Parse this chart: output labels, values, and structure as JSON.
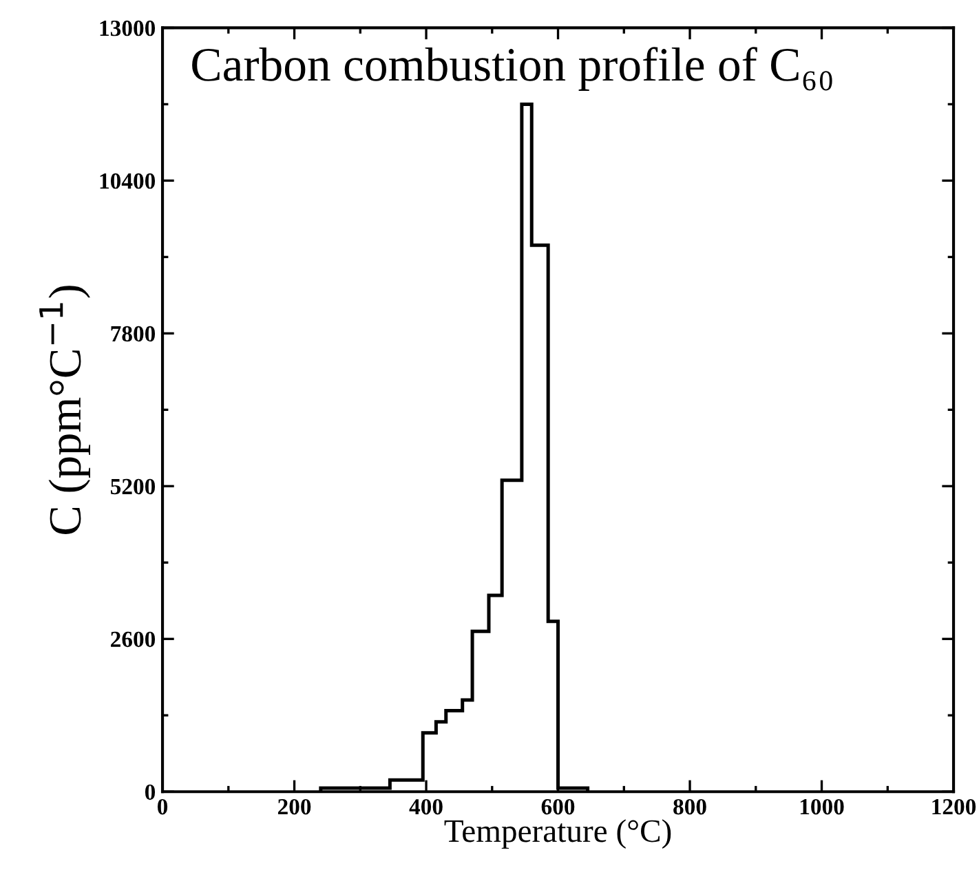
{
  "chart_data": {
    "type": "histogram",
    "title": "Carbon combustion profile of C₆₀",
    "xlabel": "Temperature (°C)",
    "ylabel": "C (ppm°C$^{−1}$)",
    "bins": [
      240,
      345,
      395,
      415,
      430,
      455,
      470,
      495,
      515,
      545,
      560,
      585,
      600,
      645
    ],
    "values": [
      60,
      200,
      1000,
      1190,
      1380,
      1560,
      2730,
      3340,
      5300,
      11700,
      9300,
      2900,
      60
    ],
    "color": "#000000",
    "xlim": [
      0,
      1200
    ],
    "xticks": [
      0,
      200,
      400,
      600,
      800,
      1000,
      1200
    ],
    "ylim": [
      0,
      13000
    ],
    "yticks": [
      0,
      2600,
      5200,
      7800,
      10400,
      13000
    ],
    "grid": false,
    "legend": false
  }
}
